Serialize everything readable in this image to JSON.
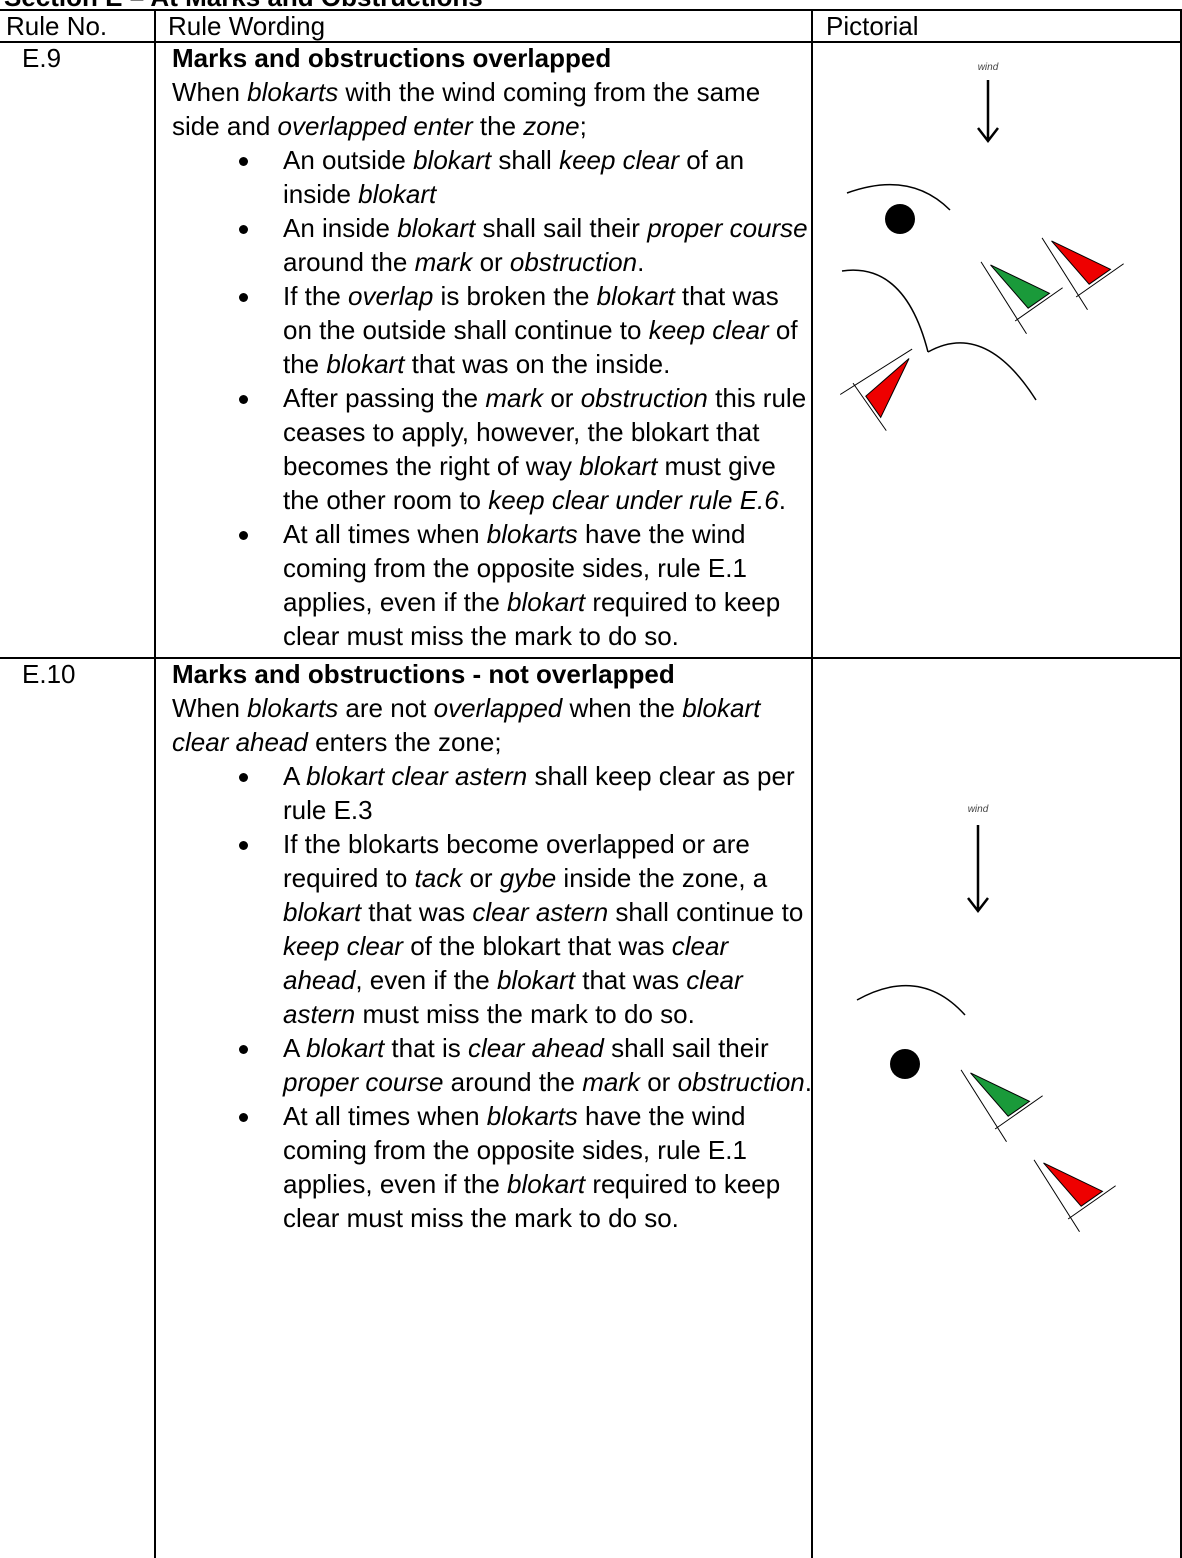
{
  "section_title": "Section E – At Marks and Obstructions",
  "header": [
    "Rule No.",
    "Rule Wording",
    "Pictorial"
  ],
  "rows": [
    {
      "rule": "E.9",
      "title": "Marks and obstructions overlapped",
      "intro": [
        "When ",
        {
          "i": "blokarts"
        },
        " with the wind coming from the same side and ",
        {
          "i": "overlapped enter"
        },
        " the ",
        {
          "i": "zone"
        },
        ";"
      ],
      "bullets": [
        [
          "An outside ",
          {
            "i": "blokart"
          },
          " shall ",
          {
            "i": "keep clear"
          },
          " of an inside ",
          {
            "i": "blokart"
          }
        ],
        [
          "An inside ",
          {
            "i": "blokart"
          },
          " shall sail their ",
          {
            "i": "proper course"
          },
          " around the ",
          {
            "i": "mark"
          },
          " or ",
          {
            "i": "obstruction"
          },
          "."
        ],
        [
          "If the ",
          {
            "i": "overlap"
          },
          " is broken the ",
          {
            "i": "blokart"
          },
          " that was on the outside shall continue to ",
          {
            "i": "keep clear"
          },
          " of the ",
          {
            "i": "blokart"
          },
          " that was on the inside."
        ],
        [
          "After passing the ",
          {
            "i": "mark"
          },
          " or ",
          {
            "i": "obstruction"
          },
          " this rule ceases to apply, however, the blokart that becomes the right of way ",
          {
            "i": "blokart"
          },
          " must give the other room to ",
          {
            "i": "keep clear under rule E.6"
          },
          "."
        ],
        [
          "At all times when ",
          {
            "i": "blokarts"
          },
          " have the wind coming from the opposite sides, rule E.1 applies, even if the ",
          {
            "i": "blokart"
          },
          " required to keep clear must miss the mark to do so."
        ]
      ],
      "pictorial_label": "wind"
    },
    {
      "rule": "E.10",
      "title": "Marks and obstructions - not overlapped",
      "intro": [
        "When ",
        {
          "i": "blokarts"
        },
        " are not ",
        {
          "i": "overlapped"
        },
        " when the ",
        {
          "i": "blokart clear ahead"
        },
        " enters the zone;"
      ],
      "bullets": [
        [
          "A ",
          {
            "i": "blokart clear astern"
          },
          " shall keep clear as per rule E.3"
        ],
        [
          "If the blokarts become overlapped or are required to ",
          {
            "i": "tack"
          },
          " or ",
          {
            "i": "gybe"
          },
          " inside the zone, a ",
          {
            "i": "blokart"
          },
          " that was ",
          {
            "i": "clear astern"
          },
          " shall continue to ",
          {
            "i": "keep clear"
          },
          " of the blokart that was ",
          {
            "i": "clear ahead"
          },
          ", even if the ",
          {
            "i": "blokart"
          },
          " that was ",
          {
            "i": "clear astern"
          },
          " must miss the mark to do so."
        ],
        [
          "A ",
          {
            "i": "blokart"
          },
          " that is ",
          {
            "i": "clear ahead"
          },
          " shall sail their ",
          {
            "i": "proper course"
          },
          " around the ",
          {
            "i": "mark"
          },
          " or ",
          {
            "i": "obstruction"
          },
          "."
        ],
        [
          "At all times when ",
          {
            "i": "blokarts"
          },
          " have the wind coming from the opposite sides, rule E.1 applies, even if the ",
          {
            "i": "blokart"
          },
          " required to keep clear must miss the mark to do so."
        ]
      ],
      "pictorial_label": "wind"
    }
  ]
}
